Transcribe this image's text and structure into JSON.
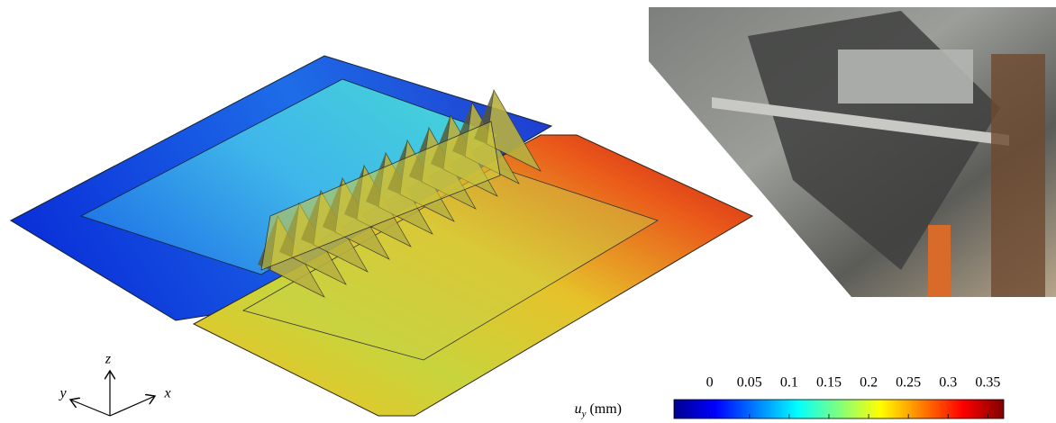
{
  "axes": {
    "x": "x",
    "y": "y",
    "z": "z"
  },
  "colorbar": {
    "label": {
      "symbol": "u",
      "subscript": "y",
      "unit": "(mm)"
    },
    "lim": [
      -0.045,
      0.37
    ],
    "ticks": [
      0,
      0.05,
      0.1,
      0.15,
      0.2,
      0.25,
      0.3,
      0.35
    ]
  }
}
